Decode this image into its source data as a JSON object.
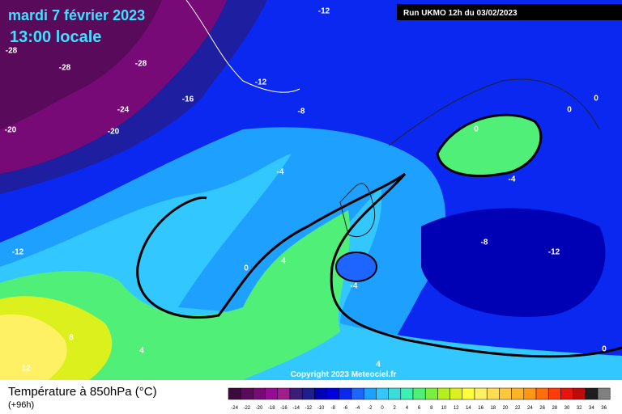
{
  "header": {
    "date": "mardi 7 février 2023",
    "time": "13:00 locale",
    "run": "Run UKMO 12h du 03/02/2023"
  },
  "copyright": "Copyright 2023 Meteociel.fr",
  "footer": {
    "title": "Température à 850hPa (°C)",
    "lead": "(+96h)"
  },
  "map": {
    "contour_labels": [
      -12,
      -28,
      -28,
      -28,
      -12,
      -24,
      -16,
      -8,
      -20,
      -20,
      0,
      0,
      0,
      -4,
      -4,
      -12,
      0,
      4,
      -8,
      -12,
      -4,
      8,
      4,
      4,
      0,
      12
    ]
  },
  "legend": {
    "labels": [
      -24,
      -22,
      -20,
      -18,
      -16,
      -14,
      -12,
      -10,
      -8,
      -6,
      -4,
      -2,
      0,
      2,
      4,
      6,
      8,
      10,
      12,
      14,
      16,
      18,
      20,
      22,
      24,
      26,
      28,
      30,
      32,
      34,
      36
    ],
    "colors": [
      "#3c0a3c",
      "#5a0a5a",
      "#780a78",
      "#960a96",
      "#a01e8c",
      "#3c1e78",
      "#1e1e8c",
      "#0000b4",
      "#0000dc",
      "#0a28f0",
      "#1e64ff",
      "#1ea0ff",
      "#32c8ff",
      "#3cdcdc",
      "#3cf0b4",
      "#50f078",
      "#78f03c",
      "#b4f01e",
      "#dcf01e",
      "#ffff3c",
      "#fff064",
      "#ffdc50",
      "#ffc83c",
      "#ffb428",
      "#ff9614",
      "#ff6e0a",
      "#ff3c0a",
      "#e6140a",
      "#be0a0a",
      "#1e1e1e",
      "#808080"
    ]
  }
}
